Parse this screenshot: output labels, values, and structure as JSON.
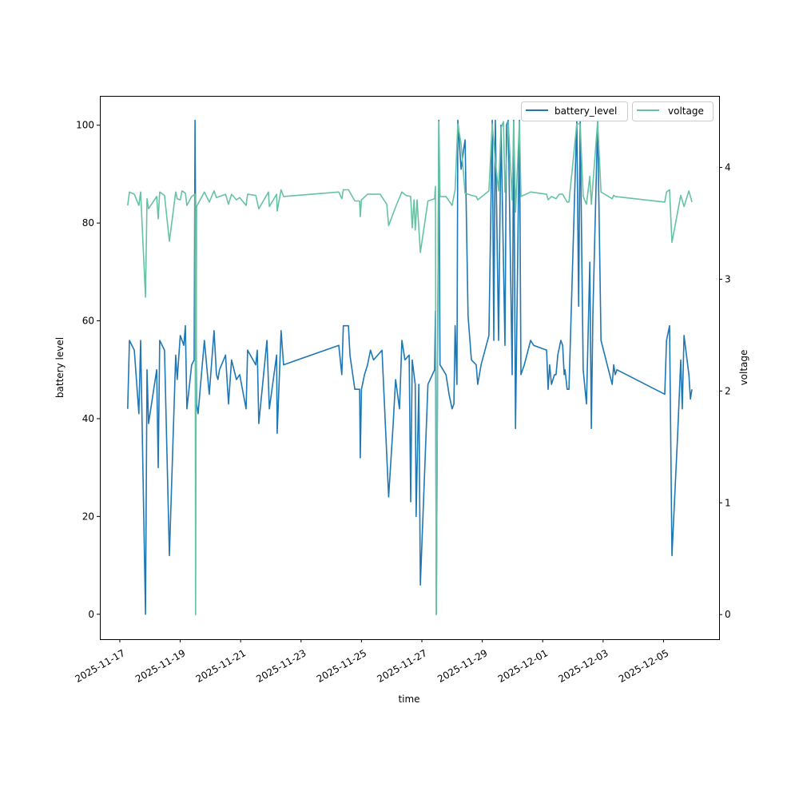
{
  "chart_data": {
    "type": "line",
    "title": "",
    "xlabel": "time",
    "ylabel": "battery level",
    "y2label": "voltage",
    "x_origin": "2025-11-17",
    "x_unit": "days since x_origin",
    "xlim": [
      -0.66,
      19.84
    ],
    "ylim": [
      -5.1,
      106
    ],
    "y2lim": [
      -0.22,
      4.64
    ],
    "x_ticks": [
      "2025-11-17",
      "2025-11-19",
      "2025-11-21",
      "2025-11-23",
      "2025-11-25",
      "2025-11-27",
      "2025-11-29",
      "2025-12-01",
      "2025-12-03",
      "2025-12-05"
    ],
    "y_ticks": [
      "0",
      "20",
      "40",
      "60",
      "80",
      "100"
    ],
    "y2_ticks": [
      "0",
      "1",
      "2",
      "3",
      "4"
    ],
    "legend": {
      "placement": "top-right",
      "entries": [
        "battery_level",
        "voltage"
      ]
    },
    "series": [
      {
        "name": "battery_level",
        "axis": "left",
        "color": "#1f77b4",
        "points": [
          [
            0.26,
            42
          ],
          [
            0.32,
            56
          ],
          [
            0.48,
            54
          ],
          [
            0.63,
            41
          ],
          [
            0.69,
            56
          ],
          [
            0.85,
            0
          ],
          [
            0.9,
            50
          ],
          [
            0.95,
            39
          ],
          [
            1.22,
            50
          ],
          [
            1.27,
            30
          ],
          [
            1.32,
            56
          ],
          [
            1.48,
            54
          ],
          [
            1.64,
            12
          ],
          [
            1.85,
            53
          ],
          [
            1.9,
            48
          ],
          [
            2.0,
            57
          ],
          [
            2.12,
            55
          ],
          [
            2.17,
            59
          ],
          [
            2.22,
            42
          ],
          [
            2.38,
            51
          ],
          [
            2.46,
            52
          ],
          [
            2.49,
            101
          ],
          [
            2.54,
            43
          ],
          [
            2.59,
            41
          ],
          [
            2.8,
            56
          ],
          [
            2.96,
            45
          ],
          [
            3.12,
            58
          ],
          [
            3.2,
            49
          ],
          [
            3.25,
            48
          ],
          [
            3.3,
            50
          ],
          [
            3.5,
            53
          ],
          [
            3.6,
            43
          ],
          [
            3.7,
            52
          ],
          [
            3.86,
            48
          ],
          [
            3.97,
            49
          ],
          [
            4.18,
            42
          ],
          [
            4.23,
            54
          ],
          [
            4.5,
            51
          ],
          [
            4.55,
            54
          ],
          [
            4.6,
            39
          ],
          [
            4.87,
            56
          ],
          [
            4.95,
            42
          ],
          [
            5.19,
            53
          ],
          [
            5.21,
            37
          ],
          [
            5.26,
            45
          ],
          [
            5.34,
            58
          ],
          [
            5.42,
            51
          ],
          [
            7.25,
            55
          ],
          [
            7.35,
            49
          ],
          [
            7.4,
            59
          ],
          [
            7.57,
            59
          ],
          [
            7.62,
            53
          ],
          [
            7.78,
            46
          ],
          [
            7.94,
            46
          ],
          [
            7.96,
            32
          ],
          [
            8.0,
            46
          ],
          [
            8.1,
            49
          ],
          [
            8.2,
            51
          ],
          [
            8.3,
            54
          ],
          [
            8.4,
            52
          ],
          [
            8.68,
            54
          ],
          [
            8.9,
            24
          ],
          [
            9.05,
            39
          ],
          [
            9.13,
            48
          ],
          [
            9.26,
            42
          ],
          [
            9.34,
            56
          ],
          [
            9.44,
            52
          ],
          [
            9.58,
            53
          ],
          [
            9.63,
            23
          ],
          [
            9.68,
            52
          ],
          [
            9.78,
            47
          ],
          [
            9.81,
            20
          ],
          [
            9.9,
            47
          ],
          [
            9.95,
            6
          ],
          [
            10.2,
            47
          ],
          [
            10.42,
            50
          ],
          [
            10.45,
            62
          ],
          [
            10.48,
            0
          ],
          [
            10.56,
            101
          ],
          [
            10.6,
            51
          ],
          [
            10.8,
            49
          ],
          [
            10.9,
            45
          ],
          [
            11.0,
            42
          ],
          [
            11.06,
            43
          ],
          [
            11.1,
            59
          ],
          [
            11.16,
            47
          ],
          [
            11.19,
            101
          ],
          [
            11.3,
            91
          ],
          [
            11.38,
            95
          ],
          [
            11.43,
            97
          ],
          [
            11.53,
            61
          ],
          [
            11.64,
            52
          ],
          [
            11.8,
            51
          ],
          [
            11.85,
            47
          ],
          [
            11.96,
            51
          ],
          [
            12.22,
            57
          ],
          [
            12.33,
            101
          ],
          [
            12.38,
            56
          ],
          [
            12.43,
            101
          ],
          [
            12.54,
            56
          ],
          [
            12.62,
            100
          ],
          [
            12.75,
            55
          ],
          [
            12.8,
            100
          ],
          [
            12.86,
            101
          ],
          [
            12.99,
            49
          ],
          [
            13.04,
            101
          ],
          [
            13.1,
            38
          ],
          [
            13.23,
            101
          ],
          [
            13.28,
            49
          ],
          [
            13.39,
            51
          ],
          [
            13.6,
            56
          ],
          [
            13.7,
            55
          ],
          [
            14.13,
            54
          ],
          [
            14.18,
            46
          ],
          [
            14.23,
            51
          ],
          [
            14.29,
            47
          ],
          [
            14.39,
            49
          ],
          [
            14.44,
            49
          ],
          [
            14.5,
            53
          ],
          [
            14.6,
            56
          ],
          [
            14.66,
            55
          ],
          [
            14.71,
            49
          ],
          [
            14.74,
            50
          ],
          [
            14.81,
            46
          ],
          [
            14.87,
            46
          ],
          [
            15.13,
            101
          ],
          [
            15.19,
            63
          ],
          [
            15.24,
            101
          ],
          [
            15.34,
            50
          ],
          [
            15.45,
            43
          ],
          [
            15.56,
            72
          ],
          [
            15.61,
            38
          ],
          [
            15.66,
            61
          ],
          [
            15.82,
            101
          ],
          [
            15.93,
            56
          ],
          [
            16.3,
            47
          ],
          [
            16.35,
            51
          ],
          [
            16.4,
            49
          ],
          [
            16.46,
            50
          ],
          [
            18.04,
            45
          ],
          [
            18.1,
            56
          ],
          [
            18.2,
            59
          ],
          [
            18.28,
            12
          ],
          [
            18.47,
            37
          ],
          [
            18.57,
            52
          ],
          [
            18.62,
            42
          ],
          [
            18.68,
            57
          ],
          [
            18.84,
            49
          ],
          [
            18.89,
            44
          ],
          [
            18.94,
            46
          ]
        ]
      },
      {
        "name": "voltage",
        "axis": "right",
        "color": "#66c2a5",
        "points": [
          [
            0.26,
            3.66
          ],
          [
            0.32,
            3.78
          ],
          [
            0.48,
            3.76
          ],
          [
            0.63,
            3.66
          ],
          [
            0.69,
            3.78
          ],
          [
            0.85,
            2.84
          ],
          [
            0.9,
            3.72
          ],
          [
            0.95,
            3.63
          ],
          [
            1.22,
            3.74
          ],
          [
            1.27,
            3.54
          ],
          [
            1.32,
            3.78
          ],
          [
            1.48,
            3.75
          ],
          [
            1.64,
            3.34
          ],
          [
            1.85,
            3.78
          ],
          [
            1.9,
            3.72
          ],
          [
            2.0,
            3.71
          ],
          [
            2.06,
            3.79
          ],
          [
            2.17,
            3.77
          ],
          [
            2.22,
            3.66
          ],
          [
            2.38,
            3.74
          ],
          [
            2.49,
            3.76
          ],
          [
            2.51,
            0
          ],
          [
            2.54,
            3.65
          ],
          [
            2.8,
            3.78
          ],
          [
            2.96,
            3.69
          ],
          [
            3.12,
            3.79
          ],
          [
            3.2,
            3.73
          ],
          [
            3.3,
            3.74
          ],
          [
            3.5,
            3.76
          ],
          [
            3.6,
            3.67
          ],
          [
            3.7,
            3.76
          ],
          [
            3.86,
            3.71
          ],
          [
            3.97,
            3.73
          ],
          [
            4.18,
            3.66
          ],
          [
            4.23,
            3.76
          ],
          [
            4.5,
            3.75
          ],
          [
            4.6,
            3.63
          ],
          [
            4.92,
            3.78
          ],
          [
            4.95,
            3.65
          ],
          [
            5.19,
            3.76
          ],
          [
            5.21,
            3.61
          ],
          [
            5.34,
            3.8
          ],
          [
            5.42,
            3.74
          ],
          [
            7.25,
            3.78
          ],
          [
            7.35,
            3.72
          ],
          [
            7.4,
            3.8
          ],
          [
            7.57,
            3.8
          ],
          [
            7.78,
            3.7
          ],
          [
            7.94,
            3.7
          ],
          [
            7.96,
            3.56
          ],
          [
            8.0,
            3.71
          ],
          [
            8.2,
            3.76
          ],
          [
            8.62,
            3.76
          ],
          [
            8.84,
            3.67
          ],
          [
            8.9,
            3.48
          ],
          [
            9.15,
            3.66
          ],
          [
            9.34,
            3.78
          ],
          [
            9.47,
            3.75
          ],
          [
            9.63,
            3.74
          ],
          [
            9.68,
            3.46
          ],
          [
            9.74,
            3.71
          ],
          [
            9.78,
            3.44
          ],
          [
            9.84,
            3.71
          ],
          [
            9.95,
            3.24
          ],
          [
            10.2,
            3.7
          ],
          [
            10.42,
            3.72
          ],
          [
            10.45,
            3.83
          ],
          [
            10.48,
            0
          ],
          [
            10.56,
            4.41
          ],
          [
            10.6,
            3.74
          ],
          [
            10.8,
            3.74
          ],
          [
            11.0,
            3.66
          ],
          [
            11.1,
            3.8
          ],
          [
            11.19,
            4.39
          ],
          [
            11.3,
            4.21
          ],
          [
            11.43,
            3.77
          ],
          [
            11.64,
            3.75
          ],
          [
            11.8,
            3.74
          ],
          [
            11.85,
            3.71
          ],
          [
            12.22,
            3.79
          ],
          [
            12.33,
            4.39
          ],
          [
            12.43,
            4.06
          ],
          [
            12.54,
            3.79
          ],
          [
            12.62,
            4.35
          ],
          [
            12.7,
            4.41
          ],
          [
            12.75,
            3.78
          ],
          [
            12.86,
            4.41
          ],
          [
            12.99,
            3.71
          ],
          [
            13.04,
            4.41
          ],
          [
            13.1,
            3.6
          ],
          [
            13.23,
            4.41
          ],
          [
            13.28,
            3.74
          ],
          [
            13.6,
            3.78
          ],
          [
            14.13,
            3.76
          ],
          [
            14.18,
            3.71
          ],
          [
            14.29,
            3.74
          ],
          [
            14.44,
            3.72
          ],
          [
            14.55,
            3.76
          ],
          [
            14.66,
            3.76
          ],
          [
            14.81,
            3.69
          ],
          [
            14.87,
            3.69
          ],
          [
            15.13,
            4.39
          ],
          [
            15.24,
            4.39
          ],
          [
            15.34,
            3.74
          ],
          [
            15.45,
            3.67
          ],
          [
            15.56,
            3.92
          ],
          [
            15.61,
            3.67
          ],
          [
            15.82,
            4.41
          ],
          [
            15.93,
            3.78
          ],
          [
            16.3,
            3.72
          ],
          [
            16.35,
            3.75
          ],
          [
            16.4,
            3.74
          ],
          [
            18.04,
            3.69
          ],
          [
            18.1,
            3.78
          ],
          [
            18.2,
            3.8
          ],
          [
            18.28,
            3.33
          ],
          [
            18.57,
            3.75
          ],
          [
            18.68,
            3.65
          ],
          [
            18.84,
            3.79
          ],
          [
            18.94,
            3.69
          ]
        ]
      }
    ]
  }
}
